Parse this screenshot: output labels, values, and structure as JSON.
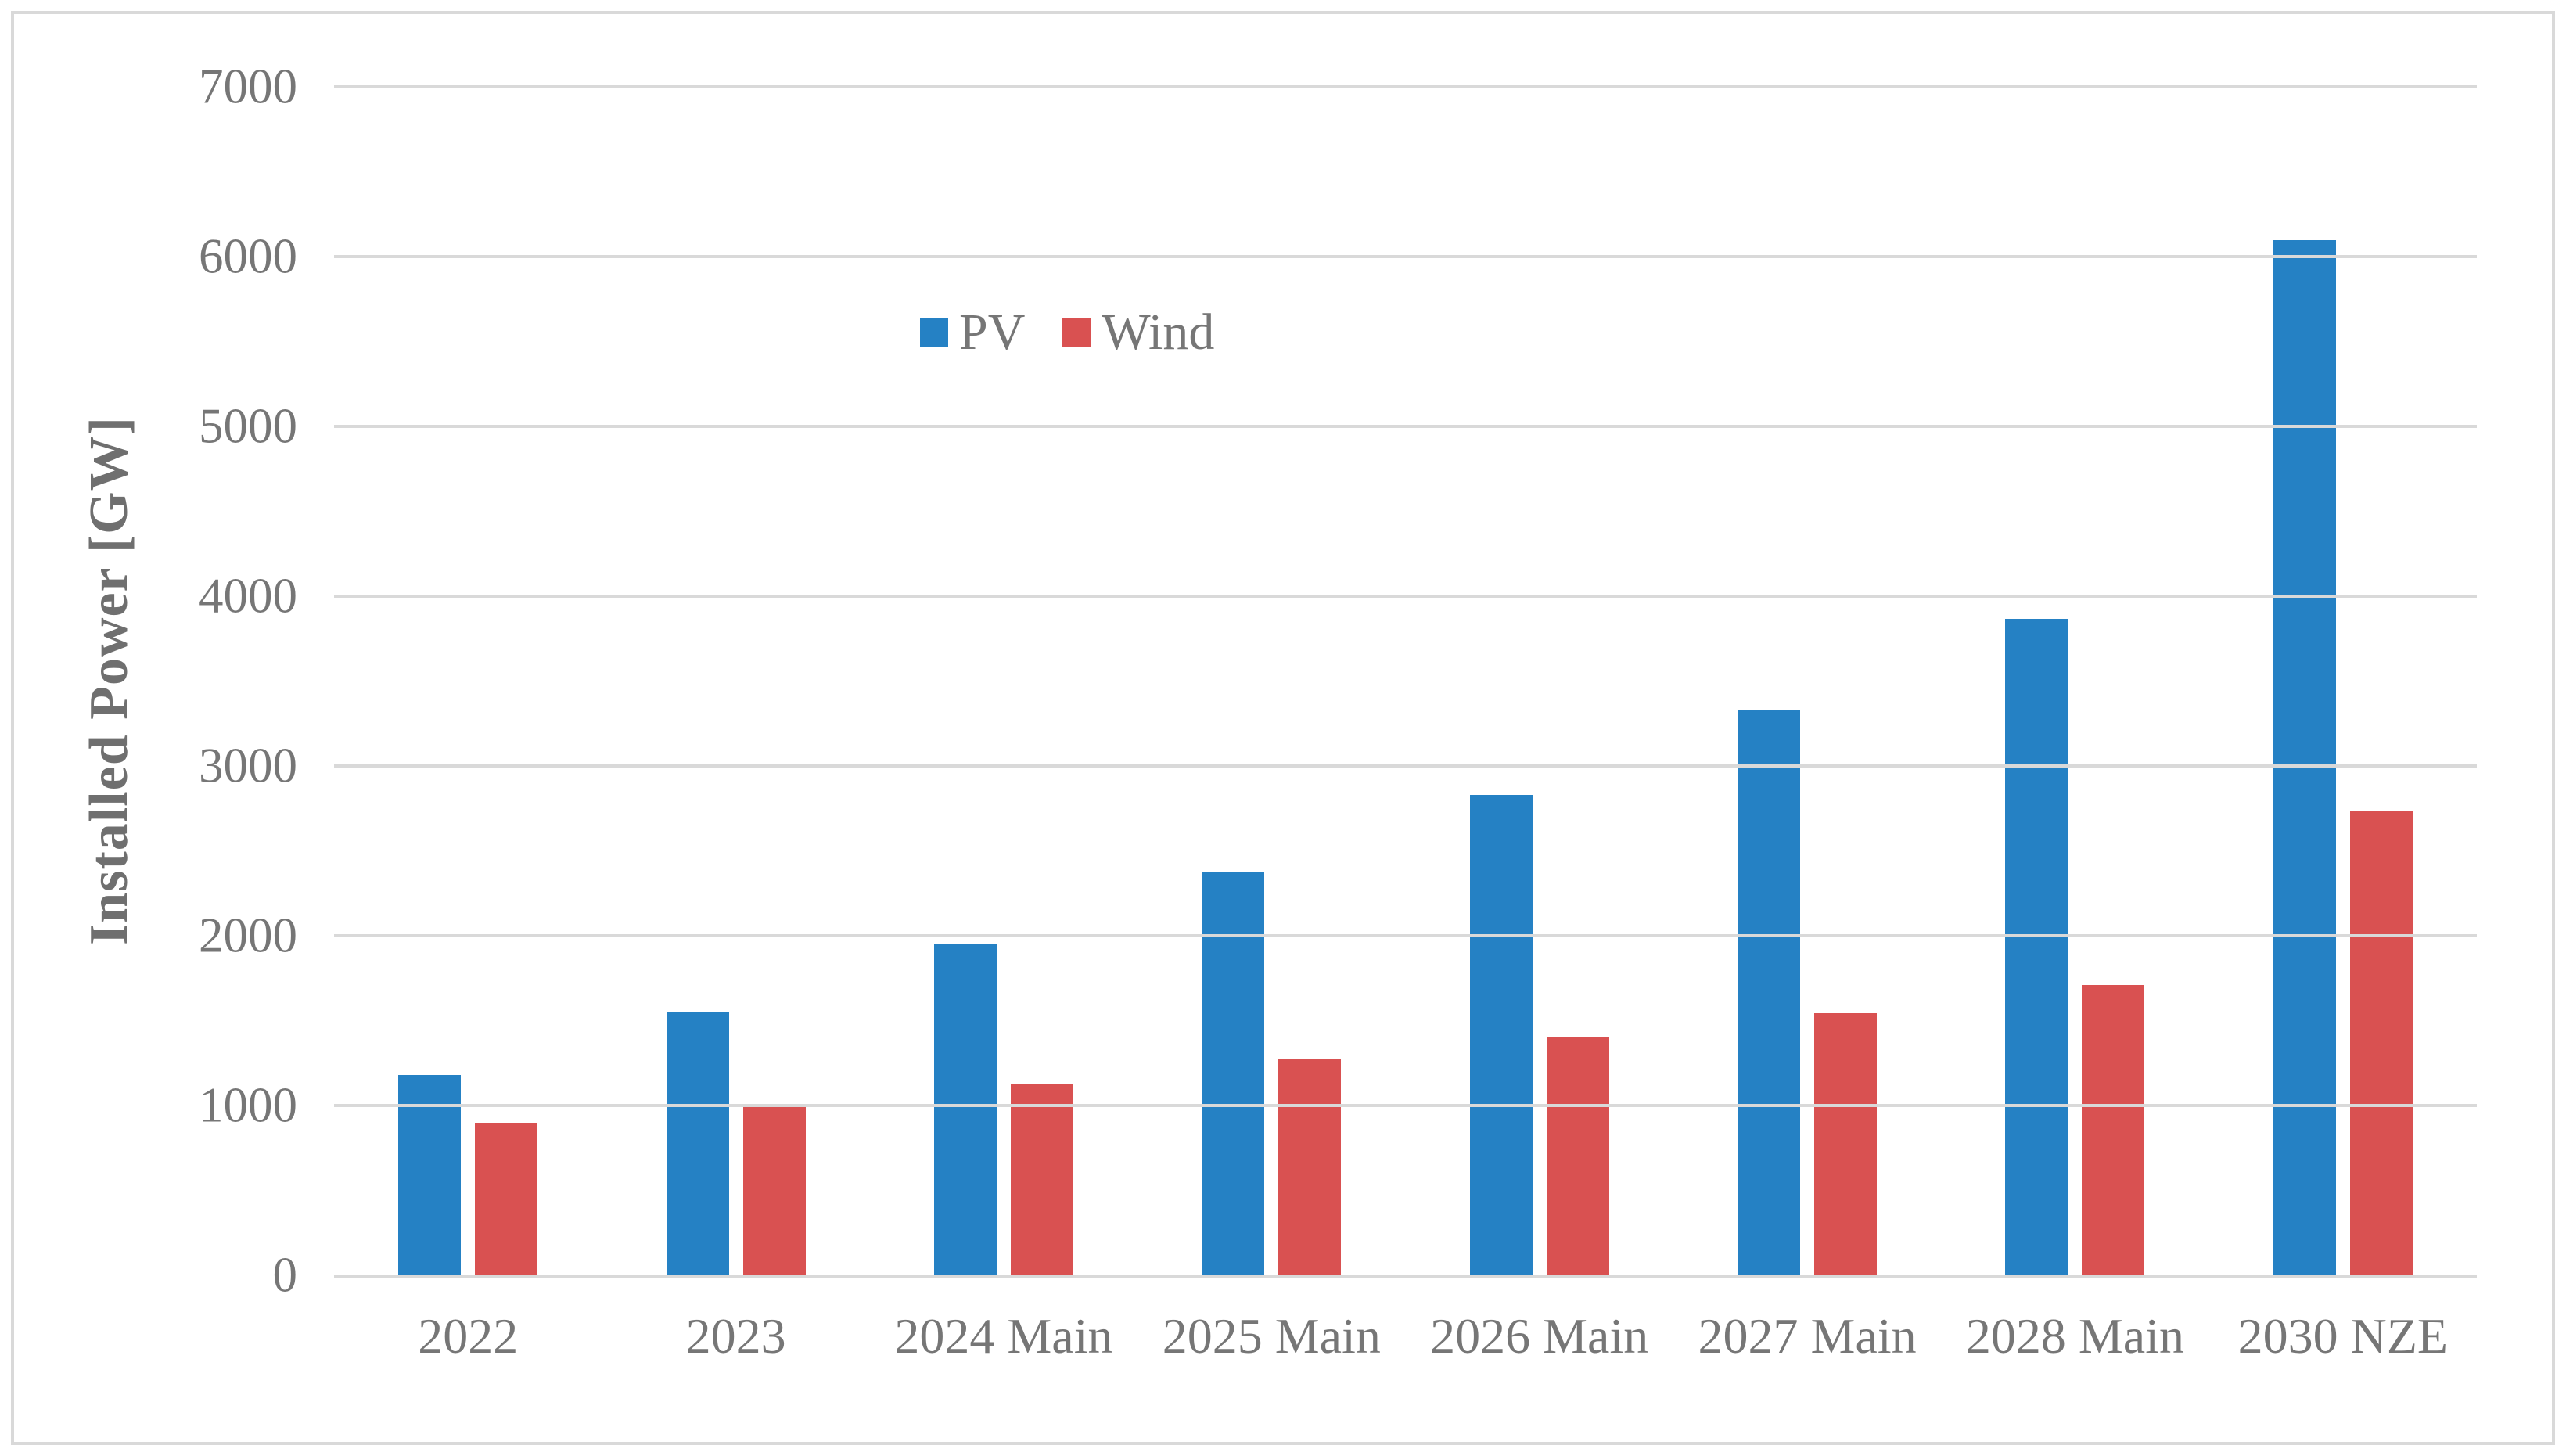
{
  "chart_data": {
    "type": "bar",
    "title": "",
    "xlabel": "",
    "ylabel": "Installed Power [GW]",
    "ylim": [
      0,
      7000
    ],
    "yticks": [
      0,
      1000,
      2000,
      3000,
      4000,
      5000,
      6000,
      7000
    ],
    "grid": "horizontal",
    "legend_position": "inside-upper-left",
    "categories": [
      "2022",
      "2023",
      "2024 Main",
      "2025 Main",
      "2026 Main",
      "2027 Main",
      "2028 Main",
      "2030 NZE"
    ],
    "series": [
      {
        "name": "PV",
        "color": "#2581C4",
        "values": [
          1180,
          1550,
          1950,
          2375,
          2830,
          3325,
          3865,
          6095
        ]
      },
      {
        "name": "Wind",
        "color": "#D95151",
        "values": [
          900,
          1000,
          1125,
          1270,
          1400,
          1545,
          1710,
          2735
        ]
      }
    ]
  },
  "styles": {
    "background": "#FFFFFF",
    "border_color": "#D9D9D9",
    "gridline_color": "#D9D9D9",
    "axis_line_color": "#D9D9D9",
    "tick_label_color": "#767676",
    "axis_title_color": "#6F6F6F"
  }
}
